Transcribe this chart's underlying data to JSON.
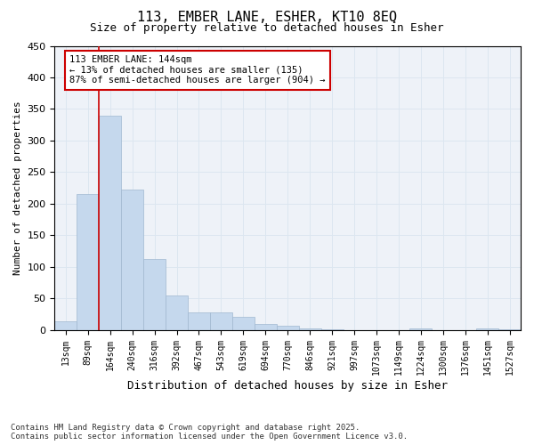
{
  "title1": "113, EMBER LANE, ESHER, KT10 8EQ",
  "title2": "Size of property relative to detached houses in Esher",
  "xlabel": "Distribution of detached houses by size in Esher",
  "ylabel": "Number of detached properties",
  "categories": [
    "13sqm",
    "89sqm",
    "164sqm",
    "240sqm",
    "316sqm",
    "392sqm",
    "467sqm",
    "543sqm",
    "619sqm",
    "694sqm",
    "770sqm",
    "846sqm",
    "921sqm",
    "997sqm",
    "1073sqm",
    "1149sqm",
    "1224sqm",
    "1300sqm",
    "1376sqm",
    "1451sqm",
    "1527sqm"
  ],
  "values": [
    13,
    215,
    340,
    222,
    112,
    54,
    27,
    27,
    20,
    10,
    6,
    2,
    1,
    0,
    0,
    0,
    2,
    0,
    0,
    2,
    1
  ],
  "bar_color": "#c5d8ed",
  "bar_edge_color": "#a0b8d0",
  "grid_color": "#dce6f0",
  "background_color": "#eef2f8",
  "vline_x": 1.5,
  "vline_color": "#cc0000",
  "annotation_text": "113 EMBER LANE: 144sqm\n← 13% of detached houses are smaller (135)\n87% of semi-detached houses are larger (904) →",
  "annotation_box_color": "#ffffff",
  "annotation_box_edge": "#cc0000",
  "ylim": [
    0,
    450
  ],
  "yticks": [
    0,
    50,
    100,
    150,
    200,
    250,
    300,
    350,
    400,
    450
  ],
  "footer1": "Contains HM Land Registry data © Crown copyright and database right 2025.",
  "footer2": "Contains public sector information licensed under the Open Government Licence v3.0."
}
